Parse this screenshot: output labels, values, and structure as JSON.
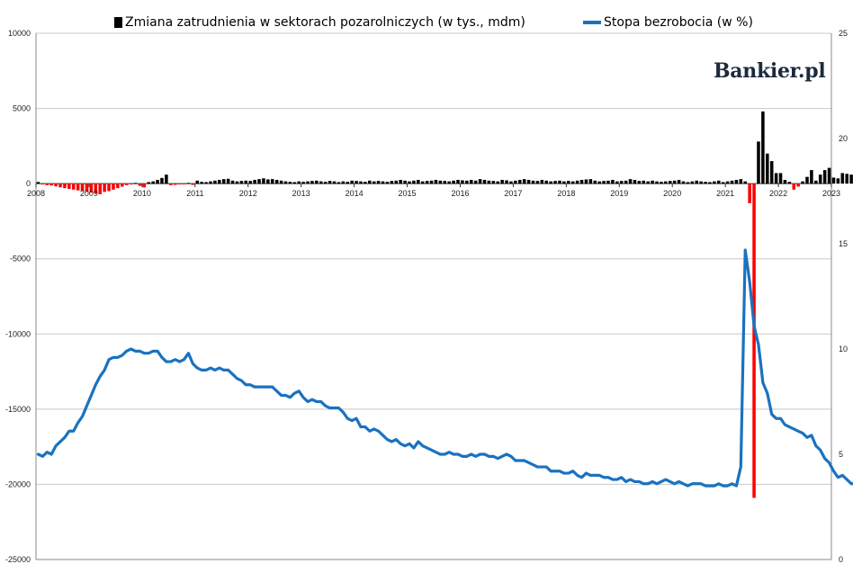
{
  "brand": "Bankier.pl",
  "legend": {
    "bars_label": "Zmiana zatrudnienia w sektorach pozarolniczych (w tys., mdm)",
    "line_label": "Stopa bezrobocia (w %)"
  },
  "colors": {
    "positive_bar": "#000000",
    "negative_bar": "#ff0000",
    "line": "#1a72c0",
    "grid": "#c8c8c8",
    "axis_text": "#222222"
  },
  "chart_data": {
    "type": "bar+line",
    "left_axis": {
      "ylim": [
        -25000,
        10000
      ],
      "ticks": [
        "-25000",
        "-20000",
        "-15000",
        "-10000",
        "-5000",
        "0",
        "5000",
        "10000"
      ]
    },
    "right_axis": {
      "ylim": [
        0,
        25
      ],
      "ticks": [
        "0",
        "5",
        "10",
        "15",
        "20",
        "25"
      ]
    },
    "x_axis": {
      "xlim": [
        2008.0,
        2023.0
      ],
      "labels": [
        "2008",
        "2009",
        "2010",
        "2011",
        "2012",
        "2013",
        "2014",
        "2015",
        "2016",
        "2017",
        "2018",
        "2019",
        "2020",
        "2021",
        "2022",
        "2023"
      ]
    },
    "bars": {
      "name": "Zmiana zatrudnienia w sektorach pozarolniczych (w tys., mdm)",
      "start": "2008-01",
      "values": [
        110,
        -50,
        -100,
        -120,
        -180,
        -250,
        -300,
        -350,
        -400,
        -450,
        -500,
        -550,
        -600,
        -650,
        -700,
        -550,
        -500,
        -400,
        -300,
        -200,
        -100,
        -50,
        50,
        -150,
        -250,
        100,
        150,
        250,
        380,
        600,
        -100,
        -80,
        -50,
        -50,
        50,
        -80,
        200,
        120,
        100,
        150,
        200,
        250,
        300,
        320,
        200,
        150,
        180,
        200,
        180,
        250,
        300,
        350,
        280,
        300,
        250,
        200,
        150,
        120,
        100,
        150,
        120,
        150,
        180,
        200,
        150,
        120,
        180,
        150,
        100,
        150,
        120,
        200,
        180,
        150,
        120,
        200,
        150,
        180,
        150,
        120,
        180,
        200,
        250,
        200,
        150,
        200,
        250,
        150,
        180,
        200,
        250,
        200,
        180,
        150,
        200,
        250,
        220,
        200,
        250,
        200,
        300,
        250,
        200,
        180,
        150,
        250,
        220,
        150,
        200,
        250,
        300,
        250,
        200,
        180,
        250,
        200,
        150,
        180,
        200,
        150,
        180,
        150,
        200,
        250,
        280,
        300,
        200,
        150,
        180,
        200,
        250,
        150,
        180,
        200,
        300,
        250,
        180,
        200,
        150,
        200,
        150,
        120,
        150,
        180,
        200,
        250,
        150,
        100,
        150,
        200,
        150,
        120,
        100,
        150,
        200,
        100,
        150,
        200,
        250,
        300,
        150,
        -1300,
        -20900,
        2800,
        4800,
        2000,
        1500,
        700,
        700,
        250,
        120,
        -400,
        -200,
        150,
        450,
        900,
        200,
        600,
        900,
        1050,
        400,
        350,
        700,
        650,
        600,
        500,
        750,
        500,
        350,
        600,
        500,
        450,
        400,
        550,
        500,
        400,
        350,
        550
      ],
      "note": "monthly change in thousands"
    },
    "line": {
      "name": "Stopa bezrobocia (w %)",
      "start": "2008-01",
      "values": [
        5.0,
        4.9,
        5.1,
        5.0,
        5.4,
        5.6,
        5.8,
        6.1,
        6.1,
        6.5,
        6.8,
        7.3,
        7.8,
        8.3,
        8.7,
        9.0,
        9.5,
        9.6,
        9.6,
        9.7,
        9.9,
        10.0,
        9.9,
        9.9,
        9.8,
        9.8,
        9.9,
        9.9,
        9.6,
        9.4,
        9.4,
        9.5,
        9.4,
        9.5,
        9.8,
        9.3,
        9.1,
        9.0,
        9.0,
        9.1,
        9.0,
        9.1,
        9.0,
        9.0,
        8.8,
        8.6,
        8.5,
        8.3,
        8.3,
        8.2,
        8.2,
        8.2,
        8.2,
        8.2,
        8.0,
        7.8,
        7.8,
        7.7,
        7.9,
        8.0,
        7.7,
        7.5,
        7.6,
        7.5,
        7.5,
        7.3,
        7.2,
        7.2,
        7.2,
        7.0,
        6.7,
        6.6,
        6.7,
        6.3,
        6.3,
        6.1,
        6.2,
        6.1,
        5.9,
        5.7,
        5.6,
        5.7,
        5.5,
        5.4,
        5.5,
        5.3,
        5.6,
        5.4,
        5.3,
        5.2,
        5.1,
        5.0,
        5.0,
        5.1,
        5.0,
        5.0,
        4.9,
        4.9,
        5.0,
        4.9,
        5.0,
        5.0,
        4.9,
        4.9,
        4.8,
        4.9,
        5.0,
        4.9,
        4.7,
        4.7,
        4.7,
        4.6,
        4.5,
        4.4,
        4.4,
        4.4,
        4.2,
        4.2,
        4.2,
        4.1,
        4.1,
        4.2,
        4.0,
        3.9,
        4.1,
        4.0,
        4.0,
        4.0,
        3.9,
        3.9,
        3.8,
        3.8,
        3.9,
        3.7,
        3.8,
        3.7,
        3.7,
        3.6,
        3.6,
        3.7,
        3.6,
        3.7,
        3.8,
        3.7,
        3.6,
        3.7,
        3.6,
        3.5,
        3.6,
        3.6,
        3.6,
        3.5,
        3.5,
        3.5,
        3.6,
        3.5,
        3.5,
        3.6,
        3.5,
        4.4,
        14.7,
        13.2,
        11.1,
        10.2,
        8.4,
        7.9,
        6.9,
        6.7,
        6.7,
        6.4,
        6.3,
        6.2,
        6.1,
        6.0,
        5.8,
        5.9,
        5.4,
        5.2,
        4.8,
        4.6,
        4.2,
        3.9,
        4.0,
        3.8,
        3.6,
        3.6,
        3.6,
        3.6,
        3.5,
        3.7,
        3.5,
        3.7,
        3.7,
        3.5,
        3.4
      ]
    }
  }
}
